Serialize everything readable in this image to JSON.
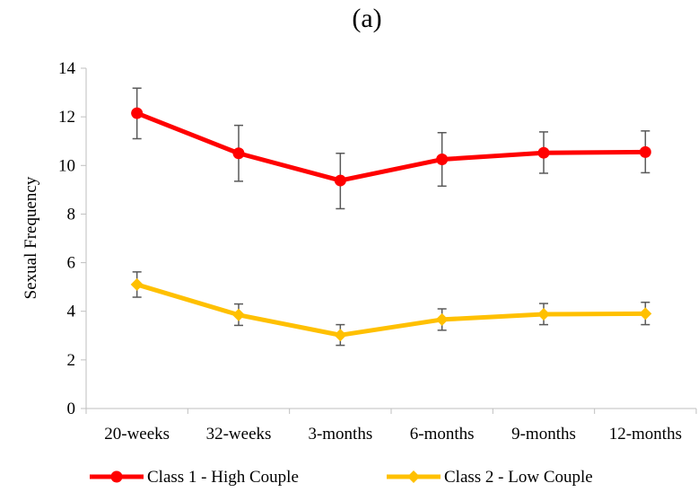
{
  "chart_data": {
    "type": "line",
    "title": "(a)",
    "xlabel": "",
    "ylabel": "Sexual Frequency",
    "categories": [
      "20-weeks",
      "32-weeks",
      "3-months",
      "6-months",
      "9-months",
      "12-months"
    ],
    "ylim": [
      0,
      14
    ],
    "yticks": [
      0,
      2,
      4,
      6,
      8,
      10,
      12,
      14
    ],
    "grid": false,
    "legend_position": "bottom",
    "series": [
      {
        "name": "Class 1 - High Couple",
        "color": "#ff0000",
        "marker": "circle",
        "values": [
          12.15,
          10.5,
          9.38,
          10.25,
          10.52,
          10.55
        ],
        "error_low": [
          11.1,
          9.35,
          8.22,
          9.15,
          9.68,
          9.7
        ],
        "error_high": [
          13.18,
          11.65,
          10.5,
          11.35,
          11.38,
          11.42
        ]
      },
      {
        "name": "Class 2 - Low Couple",
        "color": "#ffc000",
        "marker": "diamond",
        "values": [
          5.1,
          3.85,
          3.02,
          3.66,
          3.88,
          3.9
        ],
        "error_low": [
          4.58,
          3.42,
          2.6,
          3.22,
          3.45,
          3.45
        ],
        "error_high": [
          5.62,
          4.3,
          3.45,
          4.1,
          4.32,
          4.37
        ]
      }
    ]
  }
}
